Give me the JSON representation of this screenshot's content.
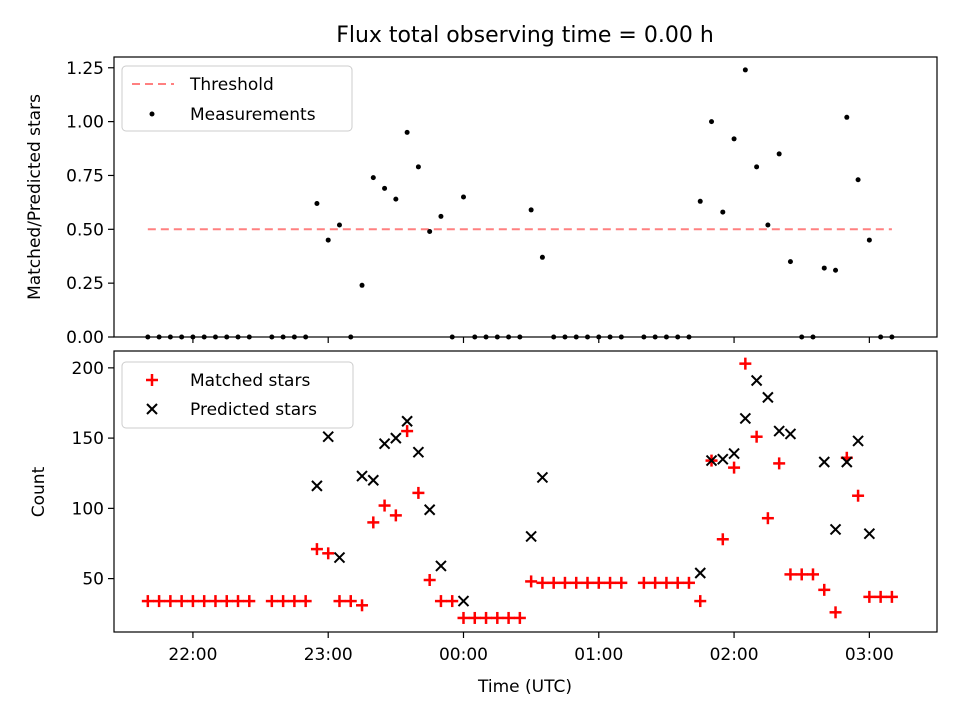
{
  "title": "Flux total observing time = 0.00 h",
  "chart_data": [
    {
      "type": "scatter",
      "ylabel": "Matched/Predicted stars",
      "ylim": [
        0,
        1.3
      ],
      "yticks": [
        0.0,
        0.25,
        0.5,
        0.75,
        1.0,
        1.25
      ],
      "ytick_labels": [
        "0.00",
        "0.25",
        "0.50",
        "0.75",
        "1.00",
        "1.25"
      ],
      "legend_position": "upper-left",
      "threshold": {
        "name": "Threshold",
        "value": 0.5,
        "x_range": [
          "21:40",
          "03:10"
        ],
        "color": "#ff8080",
        "style": "dashed"
      },
      "series": [
        {
          "name": "Measurements",
          "color": "#000000",
          "marker": "dot",
          "points": [
            [
              "21:40",
              0
            ],
            [
              "21:45",
              0
            ],
            [
              "21:50",
              0
            ],
            [
              "21:55",
              0
            ],
            [
              "22:00",
              0
            ],
            [
              "22:05",
              0
            ],
            [
              "22:10",
              0
            ],
            [
              "22:15",
              0
            ],
            [
              "22:20",
              0
            ],
            [
              "22:25",
              0
            ],
            [
              "22:35",
              0
            ],
            [
              "22:40",
              0
            ],
            [
              "22:45",
              0
            ],
            [
              "22:50",
              0
            ],
            [
              "22:55",
              0.62
            ],
            [
              "23:00",
              0.45
            ],
            [
              "23:05",
              0.52
            ],
            [
              "23:10",
              0
            ],
            [
              "23:15",
              0.24
            ],
            [
              "23:20",
              0.74
            ],
            [
              "23:25",
              0.69
            ],
            [
              "23:30",
              0.64
            ],
            [
              "23:35",
              0.95
            ],
            [
              "23:40",
              0.79
            ],
            [
              "23:45",
              0.49
            ],
            [
              "23:50",
              0.56
            ],
            [
              "23:55",
              0
            ],
            [
              "00:00",
              0.65
            ],
            [
              "00:05",
              0
            ],
            [
              "00:10",
              0
            ],
            [
              "00:15",
              0
            ],
            [
              "00:20",
              0
            ],
            [
              "00:25",
              0
            ],
            [
              "00:30",
              0.59
            ],
            [
              "00:35",
              0.37
            ],
            [
              "00:40",
              0
            ],
            [
              "00:45",
              0
            ],
            [
              "00:50",
              0
            ],
            [
              "00:55",
              0
            ],
            [
              "01:00",
              0
            ],
            [
              "01:05",
              0
            ],
            [
              "01:10",
              0
            ],
            [
              "01:20",
              0
            ],
            [
              "01:25",
              0
            ],
            [
              "01:30",
              0
            ],
            [
              "01:35",
              0
            ],
            [
              "01:40",
              0
            ],
            [
              "01:45",
              0.63
            ],
            [
              "01:50",
              1.0
            ],
            [
              "01:55",
              0.58
            ],
            [
              "02:00",
              0.92
            ],
            [
              "02:05",
              1.24
            ],
            [
              "02:10",
              0.79
            ],
            [
              "02:15",
              0.52
            ],
            [
              "02:20",
              0.85
            ],
            [
              "02:25",
              0.35
            ],
            [
              "02:30",
              0
            ],
            [
              "02:35",
              0
            ],
            [
              "02:40",
              0.32
            ],
            [
              "02:45",
              0.31
            ],
            [
              "02:50",
              1.02
            ],
            [
              "02:55",
              0.73
            ],
            [
              "03:00",
              0.45
            ],
            [
              "03:05",
              0
            ],
            [
              "03:10",
              0
            ]
          ]
        }
      ]
    },
    {
      "type": "scatter",
      "xlabel": "Time (UTC)",
      "ylabel": "Count",
      "ylim": [
        12,
        212
      ],
      "yticks": [
        50,
        100,
        150,
        200
      ],
      "ytick_labels": [
        "50",
        "100",
        "150",
        "200"
      ],
      "xticks": [
        "22:00",
        "23:00",
        "00:00",
        "01:00",
        "02:00",
        "03:00"
      ],
      "xlim": [
        "21:25",
        "03:30"
      ],
      "legend_position": "upper-left",
      "series": [
        {
          "name": "Matched stars",
          "color": "#ff0000",
          "marker": "plus",
          "points": [
            [
              "21:40",
              34
            ],
            [
              "21:45",
              34
            ],
            [
              "21:50",
              34
            ],
            [
              "21:55",
              34
            ],
            [
              "22:00",
              34
            ],
            [
              "22:05",
              34
            ],
            [
              "22:10",
              34
            ],
            [
              "22:15",
              34
            ],
            [
              "22:20",
              34
            ],
            [
              "22:25",
              34
            ],
            [
              "22:35",
              34
            ],
            [
              "22:40",
              34
            ],
            [
              "22:45",
              34
            ],
            [
              "22:50",
              34
            ],
            [
              "22:55",
              71
            ],
            [
              "23:00",
              68
            ],
            [
              "23:05",
              34
            ],
            [
              "23:10",
              34
            ],
            [
              "23:15",
              31
            ],
            [
              "23:20",
              90
            ],
            [
              "23:25",
              102
            ],
            [
              "23:30",
              95
            ],
            [
              "23:35",
              155
            ],
            [
              "23:40",
              111
            ],
            [
              "23:45",
              49
            ],
            [
              "23:50",
              34
            ],
            [
              "23:55",
              34
            ],
            [
              "00:00",
              22
            ],
            [
              "00:05",
              22
            ],
            [
              "00:10",
              22
            ],
            [
              "00:15",
              22
            ],
            [
              "00:20",
              22
            ],
            [
              "00:25",
              22
            ],
            [
              "00:30",
              48
            ],
            [
              "00:35",
              47
            ],
            [
              "00:40",
              47
            ],
            [
              "00:45",
              47
            ],
            [
              "00:50",
              47
            ],
            [
              "00:55",
              47
            ],
            [
              "01:00",
              47
            ],
            [
              "01:05",
              47
            ],
            [
              "01:10",
              47
            ],
            [
              "01:20",
              47
            ],
            [
              "01:25",
              47
            ],
            [
              "01:30",
              47
            ],
            [
              "01:35",
              47
            ],
            [
              "01:40",
              47
            ],
            [
              "01:45",
              34
            ],
            [
              "01:50",
              134
            ],
            [
              "01:55",
              78
            ],
            [
              "02:00",
              129
            ],
            [
              "02:05",
              203
            ],
            [
              "02:10",
              151
            ],
            [
              "02:15",
              93
            ],
            [
              "02:20",
              132
            ],
            [
              "02:25",
              53
            ],
            [
              "02:30",
              53
            ],
            [
              "02:35",
              53
            ],
            [
              "02:40",
              42
            ],
            [
              "02:45",
              26
            ],
            [
              "02:50",
              136
            ],
            [
              "02:55",
              109
            ],
            [
              "03:00",
              37
            ],
            [
              "03:05",
              37
            ],
            [
              "03:10",
              37
            ]
          ]
        },
        {
          "name": "Predicted stars",
          "color": "#000000",
          "marker": "x",
          "points": [
            [
              "22:55",
              116
            ],
            [
              "23:00",
              151
            ],
            [
              "23:05",
              65
            ],
            [
              "23:15",
              123
            ],
            [
              "23:20",
              120
            ],
            [
              "23:25",
              146
            ],
            [
              "23:30",
              150
            ],
            [
              "23:35",
              162
            ],
            [
              "23:40",
              140
            ],
            [
              "23:45",
              99
            ],
            [
              "23:50",
              59
            ],
            [
              "00:00",
              34
            ],
            [
              "00:30",
              80
            ],
            [
              "00:35",
              122
            ],
            [
              "01:45",
              54
            ],
            [
              "01:50",
              134
            ],
            [
              "01:55",
              135
            ],
            [
              "02:00",
              139
            ],
            [
              "02:05",
              164
            ],
            [
              "02:10",
              191
            ],
            [
              "02:15",
              179
            ],
            [
              "02:20",
              155
            ],
            [
              "02:25",
              153
            ],
            [
              "02:40",
              133
            ],
            [
              "02:45",
              85
            ],
            [
              "02:50",
              133
            ],
            [
              "02:55",
              148
            ],
            [
              "03:00",
              82
            ]
          ]
        }
      ]
    }
  ]
}
